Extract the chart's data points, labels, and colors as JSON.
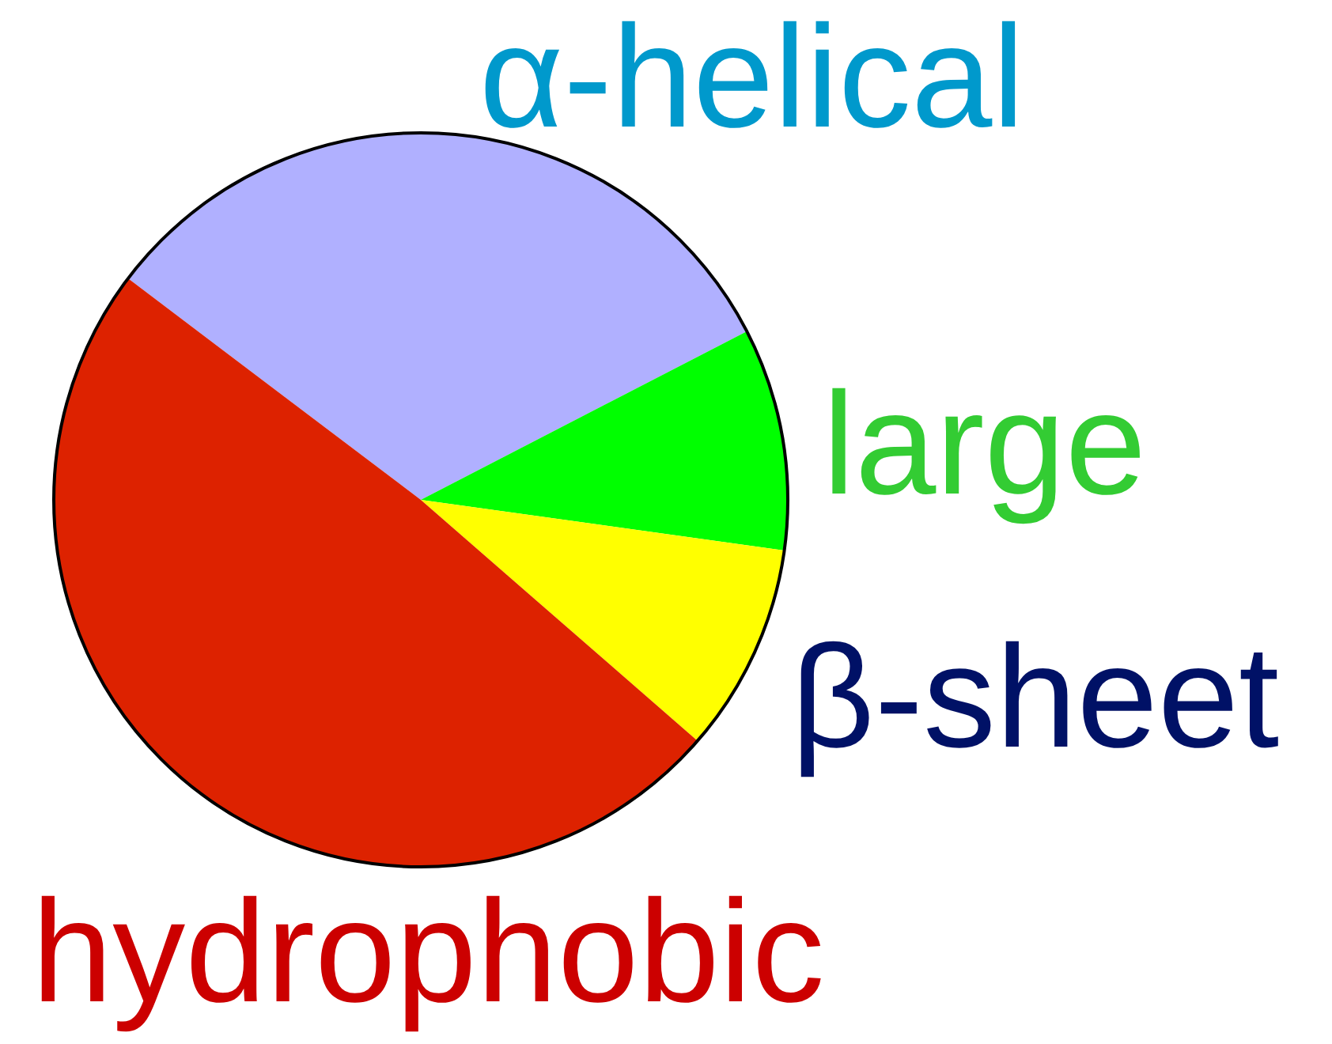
{
  "chart_data": {
    "type": "pie",
    "categories": [
      "α-helical",
      "large",
      "β-sheet",
      "hydrophobic"
    ],
    "values": [
      32.1,
      9.8,
      9.2,
      48.9
    ],
    "colors": [
      "#b0b0ff",
      "#00ff00",
      "#ffff00",
      "#dd2200"
    ]
  }
}
